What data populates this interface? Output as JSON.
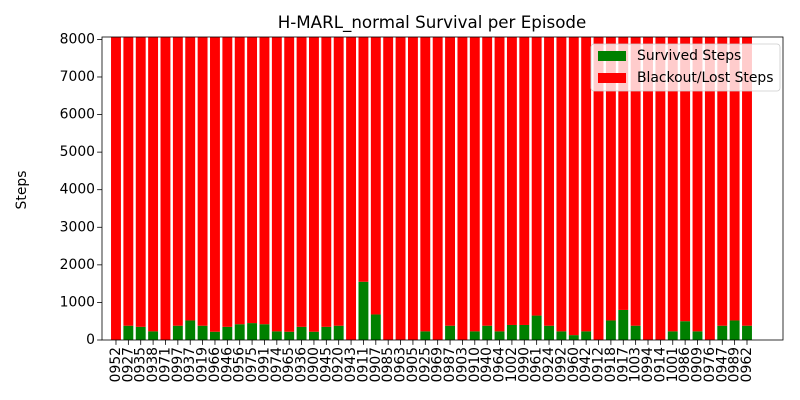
{
  "chart_data": {
    "type": "bar",
    "stacked": true,
    "title": "H-MARL_normal Survival per Episode",
    "xlabel": "",
    "ylabel": "Steps",
    "ylim": [
      0,
      8064
    ],
    "yticks": [
      0,
      1000,
      2000,
      3000,
      4000,
      5000,
      6000,
      7000,
      8000
    ],
    "grid": false,
    "legend": "top-right",
    "categories": [
      "0952",
      "0927",
      "0935",
      "0938",
      "0971",
      "0997",
      "0937",
      "0919",
      "0966",
      "0946",
      "0956",
      "0975",
      "0991",
      "0974",
      "0965",
      "0936",
      "0900",
      "0945",
      "0920",
      "0943",
      "0911",
      "0907",
      "0985",
      "0963",
      "0905",
      "0925",
      "0969",
      "0987",
      "0903",
      "0910",
      "0940",
      "0964",
      "1002",
      "0990",
      "0961",
      "0924",
      "0992",
      "0960",
      "0942",
      "0912",
      "0918",
      "0917",
      "1003",
      "0994",
      "0914",
      "1001",
      "0986",
      "0909",
      "0976",
      "0947",
      "0989",
      "0962"
    ],
    "series": [
      {
        "name": "Survived Steps",
        "color": "#008000",
        "values": [
          0,
          380,
          350,
          230,
          0,
          380,
          520,
          380,
          220,
          350,
          420,
          450,
          420,
          230,
          220,
          350,
          220,
          350,
          380,
          0,
          1550,
          680,
          0,
          0,
          0,
          230,
          0,
          380,
          0,
          230,
          380,
          230,
          400,
          400,
          650,
          380,
          230,
          130,
          230,
          0,
          520,
          800,
          380,
          0,
          0,
          230,
          500,
          230,
          0,
          380,
          520,
          380
        ]
      },
      {
        "name": "Blackout/Lost Steps",
        "color": "#ff0000",
        "values": [
          8064,
          7684,
          7714,
          7834,
          8064,
          7684,
          7544,
          7684,
          7844,
          7714,
          7644,
          7614,
          7644,
          7834,
          7844,
          7714,
          7844,
          7714,
          7684,
          8064,
          6514,
          7384,
          8064,
          8064,
          8064,
          7834,
          8064,
          7684,
          8064,
          7834,
          7684,
          7834,
          7664,
          7664,
          7414,
          7684,
          7834,
          7934,
          7834,
          8064,
          7544,
          7264,
          7684,
          8064,
          8064,
          7834,
          7564,
          7834,
          8064,
          7684,
          7544,
          7684
        ]
      }
    ]
  }
}
